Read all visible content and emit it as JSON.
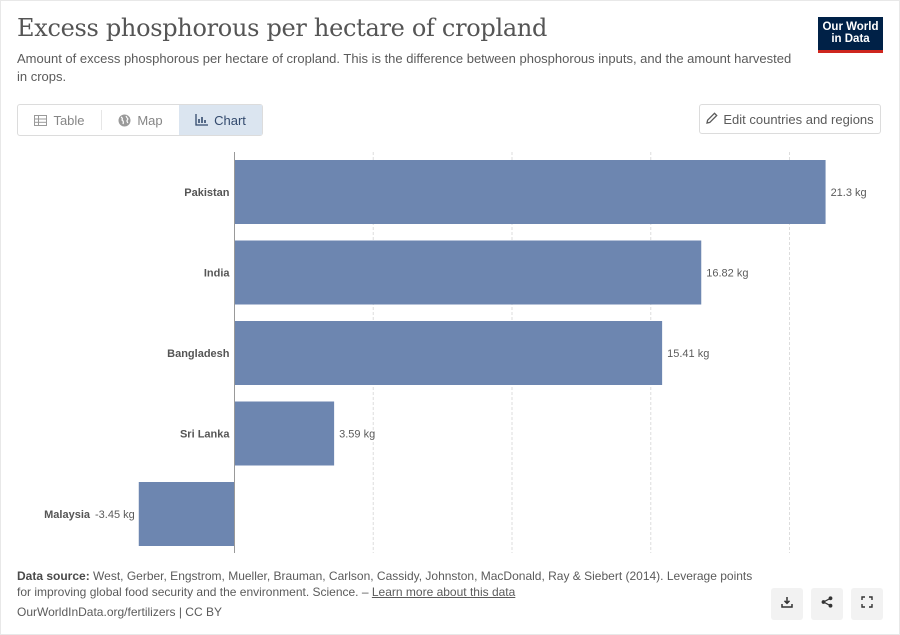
{
  "header": {
    "title": "Excess phosphorous per hectare of cropland",
    "subtitle": "Amount of excess phosphorous per hectare of cropland. This is the difference between phosphorous inputs, and the amount harvested in crops.",
    "logo_line1": "Our World",
    "logo_line2": "in Data"
  },
  "tabs": [
    {
      "label": "Table",
      "icon": "table-icon"
    },
    {
      "label": "Map",
      "icon": "globe-icon"
    },
    {
      "label": "Chart",
      "icon": "chart-icon",
      "active": true
    }
  ],
  "edit_button": {
    "label": "Edit countries and regions",
    "icon": "pencil-icon"
  },
  "chart_data": {
    "type": "bar",
    "orientation": "horizontal",
    "categories": [
      "Pakistan",
      "India",
      "Bangladesh",
      "Sri Lanka",
      "Malaysia"
    ],
    "values": [
      21.3,
      16.82,
      15.41,
      3.59,
      -3.45
    ],
    "value_labels": [
      "21.3 kg",
      "16.82 kg",
      "15.41 kg",
      "3.59 kg",
      "-3.45 kg"
    ],
    "unit": "kg",
    "xlim": [
      -3.45,
      21.3
    ],
    "grid": true,
    "bar_color": "#6d86b0"
  },
  "footer": {
    "source_label": "Data source:",
    "source_text": "West, Gerber, Engstrom, Mueller, Brauman, Carlson, Cassidy, Johnston, MacDonald, Ray & Siebert (2014). Leverage points for improving global food security and the environment. Science. –",
    "learn_more": "Learn more about this data",
    "credit": "OurWorldInData.org/fertilizers | CC BY"
  },
  "actions": [
    {
      "icon": "download-icon"
    },
    {
      "icon": "share-icon"
    },
    {
      "icon": "fullscreen-icon"
    }
  ]
}
